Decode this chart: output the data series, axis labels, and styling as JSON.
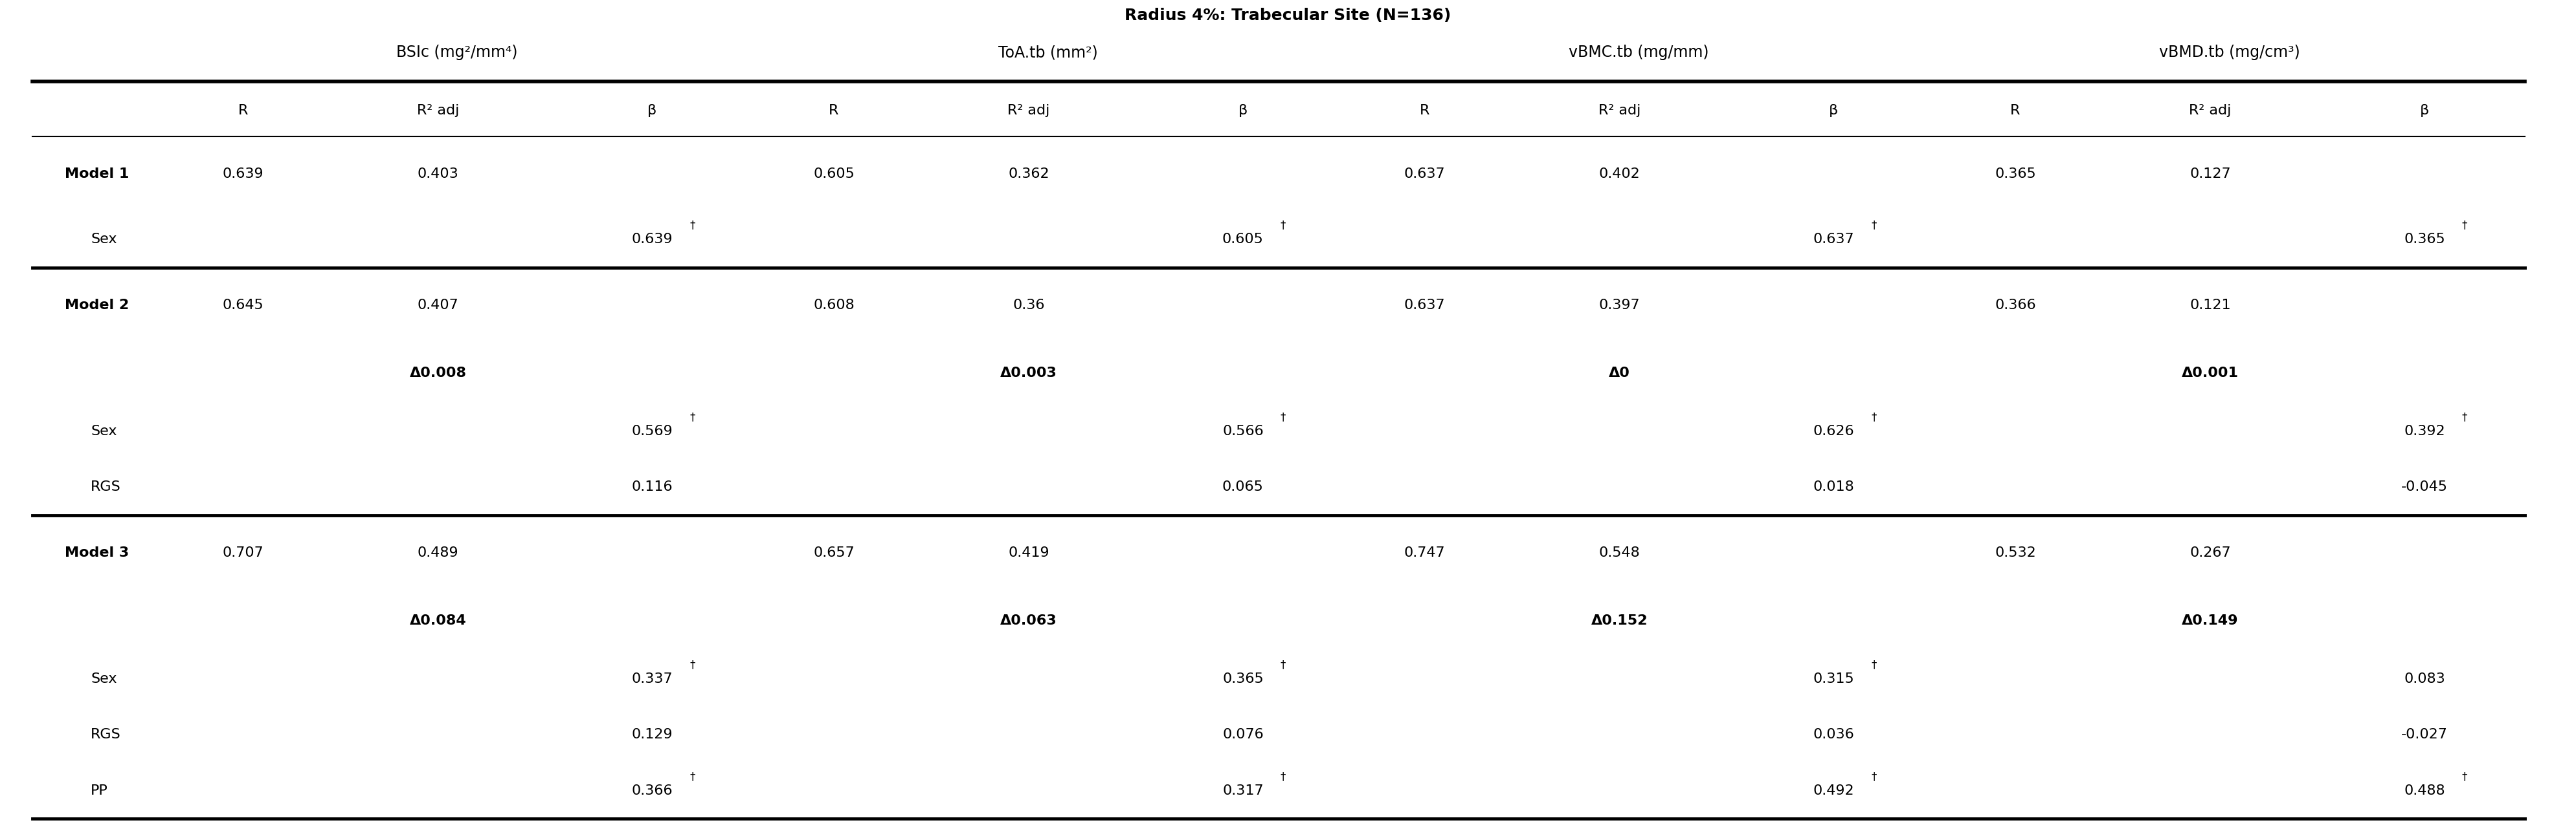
{
  "title": "Radius 4%: Trabecular Site (N=136)",
  "col_headers_level1": [
    "BSIc (mg²/mm⁴)",
    "ToA.tb (mm²)",
    "vBMC.tb (mg/mm)",
    "vBMD.tb (mg/cm³)"
  ],
  "col_headers_level2": [
    "R",
    "R² adj",
    "β",
    "R",
    "R² adj",
    "β",
    "R",
    "R² adj",
    "β",
    "R",
    "R² adj",
    "β"
  ],
  "rows": [
    {
      "label": "Model 1",
      "bold": true,
      "values": [
        "0.639",
        "0.403",
        "",
        "0.605",
        "0.362",
        "",
        "0.637",
        "0.402",
        "",
        "0.365",
        "0.127",
        ""
      ],
      "indent": 0,
      "delta_row": false
    },
    {
      "label": "Sex",
      "bold": false,
      "values": [
        "",
        "",
        "0.639†",
        "",
        "",
        "0.605†",
        "",
        "",
        "0.637†",
        "",
        "",
        "0.365†"
      ],
      "indent": 1,
      "delta_row": false
    },
    {
      "label": "Model 2",
      "bold": true,
      "values": [
        "0.645",
        "0.407",
        "",
        "0.608",
        "0.36",
        "",
        "0.637",
        "0.397",
        "",
        "0.366",
        "0.121",
        ""
      ],
      "indent": 0,
      "delta_row": false
    },
    {
      "label": "",
      "bold": false,
      "values": [
        "",
        "Δ0.008",
        "",
        "",
        "Δ0.003",
        "",
        "",
        "Δ0",
        "",
        "",
        "Δ0.001",
        ""
      ],
      "indent": 1,
      "delta_row": true
    },
    {
      "label": "Sex",
      "bold": false,
      "values": [
        "",
        "",
        "0.569†",
        "",
        "",
        "0.566†",
        "",
        "",
        "0.626†",
        "",
        "",
        "0.392†"
      ],
      "indent": 1,
      "delta_row": false
    },
    {
      "label": "RGS",
      "bold": false,
      "values": [
        "",
        "",
        "0.116",
        "",
        "",
        "0.065",
        "",
        "",
        "0.018",
        "",
        "",
        "-0.045"
      ],
      "indent": 1,
      "delta_row": false
    },
    {
      "label": "Model 3",
      "bold": true,
      "values": [
        "0.707",
        "0.489",
        "",
        "0.657",
        "0.419",
        "",
        "0.747",
        "0.548",
        "",
        "0.532",
        "0.267",
        ""
      ],
      "indent": 0,
      "delta_row": false
    },
    {
      "label": "",
      "bold": false,
      "values": [
        "",
        "Δ0.084",
        "",
        "",
        "Δ0.063",
        "",
        "",
        "Δ0.152",
        "",
        "",
        "Δ0.149",
        ""
      ],
      "indent": 1,
      "delta_row": true
    },
    {
      "label": "Sex",
      "bold": false,
      "values": [
        "",
        "",
        "0.337†",
        "",
        "",
        "0.365†",
        "",
        "",
        "0.315†",
        "",
        "",
        "0.083"
      ],
      "indent": 1,
      "delta_row": false
    },
    {
      "label": "RGS",
      "bold": false,
      "values": [
        "",
        "",
        "0.129",
        "",
        "",
        "0.076",
        "",
        "",
        "0.036",
        "",
        "",
        "-0.027"
      ],
      "indent": 1,
      "delta_row": false
    },
    {
      "label": "PP",
      "bold": false,
      "values": [
        "",
        "",
        "0.366†",
        "",
        "",
        "0.317†",
        "",
        "",
        "0.492†",
        "",
        "",
        "0.488†"
      ],
      "indent": 1,
      "delta_row": false
    }
  ],
  "thick_rule_after_rows": [
    1,
    5
  ],
  "background_color": "#ffffff",
  "text_color": "#000000",
  "title_fontsize": 18,
  "header1_fontsize": 17,
  "header2_fontsize": 16,
  "body_fontsize": 16,
  "bold_fontsize": 16,
  "superscript_fontsize": 12
}
